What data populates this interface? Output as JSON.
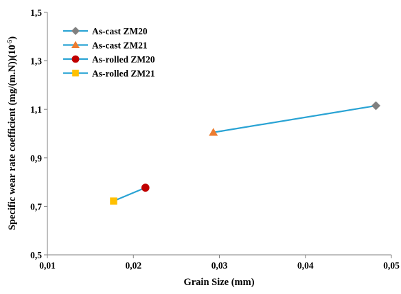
{
  "chart_data": {
    "type": "scatter",
    "title": "",
    "xlabel": "Grain Size (mm)",
    "ylabel": "Specific wear rate coefficient (mg/(m.N))(10",
    "ylabel_superscript": "-5",
    "ylabel_suffix": ")",
    "xlim": [
      0.01,
      0.05
    ],
    "ylim": [
      0.5,
      1.5
    ],
    "x_ticks": [
      "0,01",
      "0,02",
      "0,03",
      "0,04",
      "0,05"
    ],
    "y_ticks": [
      "0,5",
      "0,7",
      "0,9",
      "1,1",
      "1,3",
      "1,5"
    ],
    "grid": false,
    "legend_position": "top-left",
    "line_color": "#29a3d4",
    "series": [
      {
        "name": "As-cast ZM20",
        "marker": "diamond",
        "color": "#808080",
        "points": [
          {
            "x": 0.0482,
            "y": 1.115
          }
        ]
      },
      {
        "name": "As-cast ZM21",
        "marker": "triangle",
        "color": "#ed7d31",
        "points": [
          {
            "x": 0.0293,
            "y": 1.005
          }
        ]
      },
      {
        "name": "As-rolled ZM20",
        "marker": "circle",
        "color": "#c00000",
        "points": [
          {
            "x": 0.0214,
            "y": 0.777
          }
        ]
      },
      {
        "name": "As-rolled ZM21",
        "marker": "square",
        "color": "#ffc000",
        "points": [
          {
            "x": 0.0177,
            "y": 0.722
          }
        ]
      }
    ],
    "connectors": [
      [
        1,
        0
      ],
      [
        3,
        2
      ]
    ]
  }
}
